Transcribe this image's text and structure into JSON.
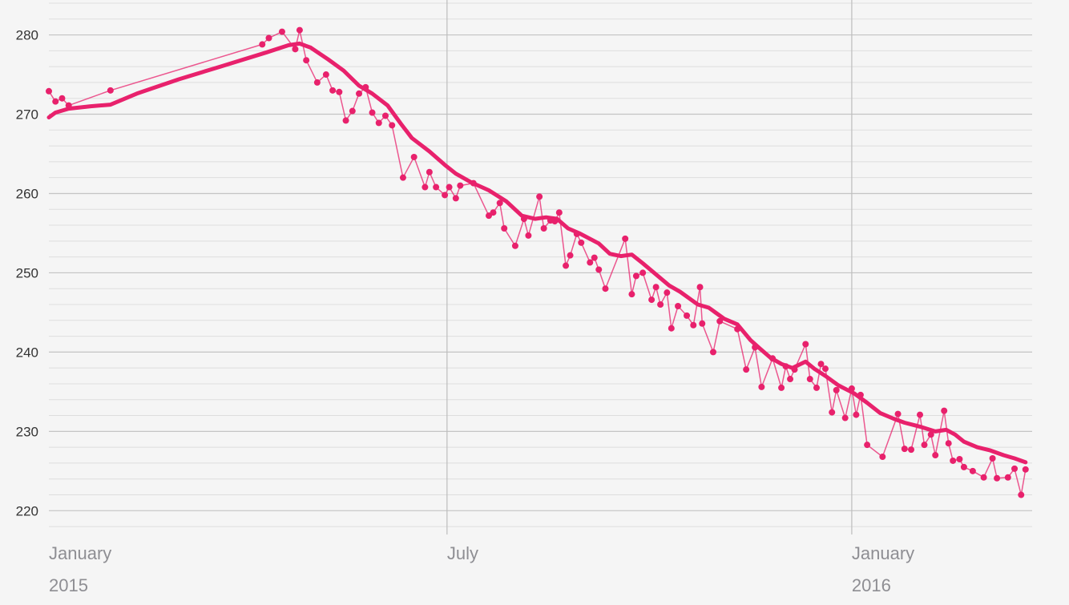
{
  "chart_data": {
    "type": "line",
    "title": "",
    "xlabel": "",
    "ylabel": "",
    "ylim": [
      217,
      284.4
    ],
    "xlim": [
      "2015-01-01",
      "2016-03-23"
    ],
    "grid": {
      "major_y_step": 10,
      "minor_y_step": 2,
      "vertical_at_ticks": true
    },
    "y_ticks": [
      220,
      230,
      240,
      250,
      260,
      270,
      280
    ],
    "x_ticks": [
      {
        "date": "2015-01-01",
        "month": "January",
        "year": "2015"
      },
      {
        "date": "2015-07-01",
        "month": "July",
        "year": ""
      },
      {
        "date": "2016-01-01",
        "month": "January",
        "year": "2016"
      }
    ],
    "colors": {
      "raw": "#e8216c",
      "trend": "#e8216c",
      "background": "#f5f5f5"
    },
    "series": [
      {
        "role": "raw",
        "points": [
          [
            "2015-01-01",
            272.9
          ],
          [
            "2015-01-04",
            271.6
          ],
          [
            "2015-01-07",
            272.0
          ],
          [
            "2015-01-10",
            271.1
          ],
          [
            "2015-01-29",
            273.0
          ],
          [
            "2015-04-08",
            278.8
          ],
          [
            "2015-04-11",
            279.6
          ],
          [
            "2015-04-17",
            280.4
          ],
          [
            "2015-04-23",
            278.2
          ],
          [
            "2015-04-25",
            280.6
          ],
          [
            "2015-04-28",
            276.8
          ],
          [
            "2015-05-03",
            274.0
          ],
          [
            "2015-05-07",
            275.0
          ],
          [
            "2015-05-10",
            273.0
          ],
          [
            "2015-05-13",
            272.8
          ],
          [
            "2015-05-16",
            269.2
          ],
          [
            "2015-05-19",
            270.4
          ],
          [
            "2015-05-22",
            272.6
          ],
          [
            "2015-05-25",
            273.4
          ],
          [
            "2015-05-28",
            270.2
          ],
          [
            "2015-05-31",
            268.9
          ],
          [
            "2015-06-03",
            269.8
          ],
          [
            "2015-06-06",
            268.6
          ],
          [
            "2015-06-11",
            262.0
          ],
          [
            "2015-06-16",
            264.6
          ],
          [
            "2015-06-21",
            260.8
          ],
          [
            "2015-06-23",
            262.7
          ],
          [
            "2015-06-26",
            260.8
          ],
          [
            "2015-06-30",
            259.8
          ],
          [
            "2015-07-02",
            260.8
          ],
          [
            "2015-07-05",
            259.4
          ],
          [
            "2015-07-07",
            261.0
          ],
          [
            "2015-07-13",
            261.3
          ],
          [
            "2015-07-20",
            257.2
          ],
          [
            "2015-07-22",
            257.6
          ],
          [
            "2015-07-25",
            258.8
          ],
          [
            "2015-07-27",
            255.6
          ],
          [
            "2015-08-01",
            253.4
          ],
          [
            "2015-08-05",
            256.8
          ],
          [
            "2015-08-07",
            254.7
          ],
          [
            "2015-08-12",
            259.6
          ],
          [
            "2015-08-14",
            255.6
          ],
          [
            "2015-08-17",
            256.6
          ],
          [
            "2015-08-19",
            256.5
          ],
          [
            "2015-08-21",
            257.6
          ],
          [
            "2015-08-24",
            250.9
          ],
          [
            "2015-08-26",
            252.2
          ],
          [
            "2015-08-29",
            254.9
          ],
          [
            "2015-08-31",
            253.8
          ],
          [
            "2015-09-04",
            251.3
          ],
          [
            "2015-09-06",
            251.9
          ],
          [
            "2015-09-08",
            250.4
          ],
          [
            "2015-09-11",
            248.0
          ],
          [
            "2015-09-20",
            254.3
          ],
          [
            "2015-09-23",
            247.3
          ],
          [
            "2015-09-25",
            249.6
          ],
          [
            "2015-09-28",
            250.0
          ],
          [
            "2015-10-02",
            246.6
          ],
          [
            "2015-10-04",
            248.2
          ],
          [
            "2015-10-06",
            246.0
          ],
          [
            "2015-10-09",
            247.5
          ],
          [
            "2015-10-11",
            243.0
          ],
          [
            "2015-10-14",
            245.8
          ],
          [
            "2015-10-18",
            244.6
          ],
          [
            "2015-10-21",
            243.4
          ],
          [
            "2015-10-24",
            248.2
          ],
          [
            "2015-10-25",
            243.6
          ],
          [
            "2015-10-30",
            240.0
          ],
          [
            "2015-11-02",
            243.9
          ],
          [
            "2015-11-10",
            242.9
          ],
          [
            "2015-11-14",
            237.8
          ],
          [
            "2015-11-18",
            240.6
          ],
          [
            "2015-11-21",
            235.6
          ],
          [
            "2015-11-26",
            239.2
          ],
          [
            "2015-11-30",
            235.5
          ],
          [
            "2015-12-02",
            238.2
          ],
          [
            "2015-12-04",
            236.6
          ],
          [
            "2015-12-06",
            237.8
          ],
          [
            "2015-12-11",
            241.0
          ],
          [
            "2015-12-13",
            236.6
          ],
          [
            "2015-12-16",
            235.5
          ],
          [
            "2015-12-18",
            238.5
          ],
          [
            "2015-12-20",
            237.9
          ],
          [
            "2015-12-23",
            232.4
          ],
          [
            "2015-12-25",
            235.2
          ],
          [
            "2015-12-29",
            231.7
          ],
          [
            "2016-01-01",
            235.4
          ],
          [
            "2016-01-03",
            232.1
          ],
          [
            "2016-01-05",
            234.6
          ],
          [
            "2016-01-08",
            228.3
          ],
          [
            "2016-01-15",
            226.8
          ],
          [
            "2016-01-22",
            232.2
          ],
          [
            "2016-01-25",
            227.8
          ],
          [
            "2016-01-28",
            227.7
          ],
          [
            "2016-02-01",
            232.1
          ],
          [
            "2016-02-03",
            228.3
          ],
          [
            "2016-02-06",
            229.6
          ],
          [
            "2016-02-08",
            227.0
          ],
          [
            "2016-02-12",
            232.6
          ],
          [
            "2016-02-14",
            228.5
          ],
          [
            "2016-02-16",
            226.3
          ],
          [
            "2016-02-19",
            226.5
          ],
          [
            "2016-02-21",
            225.5
          ],
          [
            "2016-02-25",
            225.0
          ],
          [
            "2016-03-01",
            224.2
          ],
          [
            "2016-03-05",
            226.6
          ],
          [
            "2016-03-07",
            224.1
          ],
          [
            "2016-03-12",
            224.2
          ],
          [
            "2016-03-15",
            225.3
          ],
          [
            "2016-03-18",
            222.0
          ],
          [
            "2016-03-20",
            225.2
          ]
        ]
      },
      {
        "role": "trend",
        "points": [
          [
            "2015-01-01",
            269.6
          ],
          [
            "2015-01-04",
            270.2
          ],
          [
            "2015-01-10",
            270.7
          ],
          [
            "2015-01-20",
            271.0
          ],
          [
            "2015-01-29",
            271.2
          ],
          [
            "2015-02-10",
            272.6
          ],
          [
            "2015-03-01",
            274.4
          ],
          [
            "2015-03-20",
            276.0
          ],
          [
            "2015-04-10",
            277.8
          ],
          [
            "2015-04-20",
            278.7
          ],
          [
            "2015-04-25",
            278.9
          ],
          [
            "2015-04-30",
            278.4
          ],
          [
            "2015-05-08",
            276.9
          ],
          [
            "2015-05-15",
            275.5
          ],
          [
            "2015-05-22",
            273.6
          ],
          [
            "2015-05-28",
            272.6
          ],
          [
            "2015-06-04",
            271.1
          ],
          [
            "2015-06-10",
            268.8
          ],
          [
            "2015-06-15",
            267.0
          ],
          [
            "2015-06-23",
            265.3
          ],
          [
            "2015-06-30",
            263.6
          ],
          [
            "2015-07-05",
            262.5
          ],
          [
            "2015-07-12",
            261.4
          ],
          [
            "2015-07-20",
            260.4
          ],
          [
            "2015-07-28",
            259.0
          ],
          [
            "2015-08-04",
            257.2
          ],
          [
            "2015-08-10",
            256.8
          ],
          [
            "2015-08-15",
            257.0
          ],
          [
            "2015-08-20",
            256.8
          ],
          [
            "2015-08-25",
            255.6
          ],
          [
            "2015-08-30",
            255.0
          ],
          [
            "2015-09-08",
            253.7
          ],
          [
            "2015-09-13",
            252.4
          ],
          [
            "2015-09-18",
            252.1
          ],
          [
            "2015-09-23",
            252.3
          ],
          [
            "2015-09-28",
            251.2
          ],
          [
            "2015-10-04",
            249.8
          ],
          [
            "2015-10-10",
            248.4
          ],
          [
            "2015-10-15",
            247.6
          ],
          [
            "2015-10-23",
            246.0
          ],
          [
            "2015-10-28",
            245.6
          ],
          [
            "2015-11-04",
            244.2
          ],
          [
            "2015-11-10",
            243.5
          ],
          [
            "2015-11-16",
            241.5
          ],
          [
            "2015-11-20",
            240.5
          ],
          [
            "2015-11-25",
            239.3
          ],
          [
            "2015-11-30",
            238.5
          ],
          [
            "2015-12-05",
            238.0
          ],
          [
            "2015-12-11",
            238.8
          ],
          [
            "2015-12-15",
            237.9
          ],
          [
            "2015-12-20",
            237.0
          ],
          [
            "2015-12-26",
            235.8
          ],
          [
            "2016-01-02",
            234.8
          ],
          [
            "2016-01-08",
            233.6
          ],
          [
            "2016-01-14",
            232.3
          ],
          [
            "2016-01-20",
            231.6
          ],
          [
            "2016-01-25",
            231.1
          ],
          [
            "2016-02-01",
            230.6
          ],
          [
            "2016-02-08",
            230.0
          ],
          [
            "2016-02-13",
            230.2
          ],
          [
            "2016-02-17",
            229.6
          ],
          [
            "2016-02-21",
            228.7
          ],
          [
            "2016-02-27",
            228.0
          ],
          [
            "2016-03-04",
            227.6
          ],
          [
            "2016-03-10",
            227.0
          ],
          [
            "2016-03-15",
            226.6
          ],
          [
            "2016-03-20",
            226.1
          ]
        ]
      }
    ]
  }
}
